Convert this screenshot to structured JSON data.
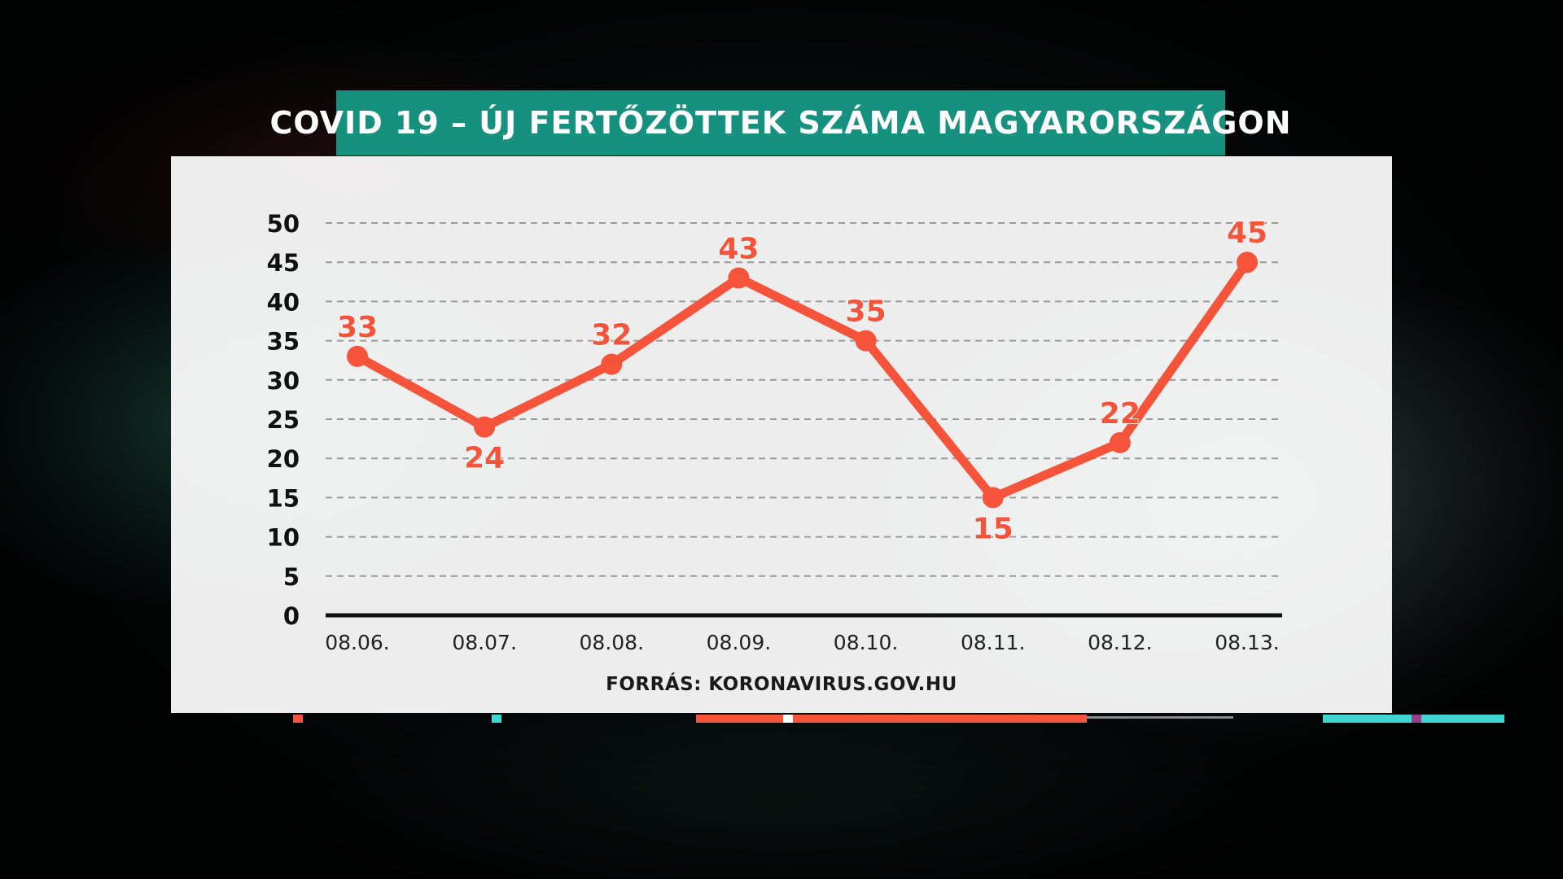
{
  "header": {
    "title": "COVID 19 – ÚJ FERTŐZÖTTEK SZÁMA MAGYARORSZÁGON"
  },
  "footer": {
    "source": "FORRÁS: KORONAVIRUS.GOV.HU"
  },
  "colors": {
    "title_bar": "#16907f",
    "line": "#f5543a",
    "axis": "#111111",
    "grid": "#9a9a9a",
    "panel": "#ffffff"
  },
  "chart_data": {
    "type": "line",
    "categories": [
      "08.06.",
      "08.07.",
      "08.08.",
      "08.09.",
      "08.10.",
      "08.11.",
      "08.12.",
      "08.13."
    ],
    "series": [
      {
        "values": [
          33,
          24,
          32,
          43,
          35,
          15,
          22,
          45
        ]
      }
    ],
    "ylim": [
      0,
      50
    ],
    "yticks": [
      0,
      5,
      10,
      15,
      20,
      25,
      30,
      35,
      40,
      45,
      50
    ],
    "grid": true,
    "data_labels": true,
    "legend": "none"
  }
}
